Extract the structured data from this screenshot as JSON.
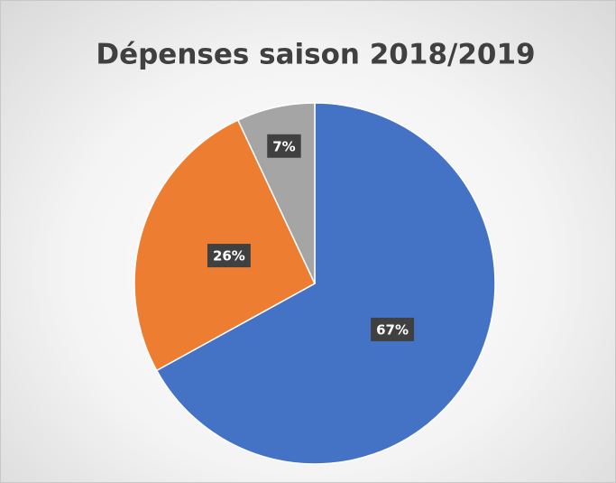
{
  "chart_data": {
    "type": "pie",
    "title": "Dépenses saison 2018/2019",
    "values": [
      67,
      26,
      7
    ],
    "value_labels": [
      "67%",
      "26%",
      "7%"
    ],
    "colors": [
      "#4472c4",
      "#ed7d31",
      "#a5a5a5"
    ]
  }
}
